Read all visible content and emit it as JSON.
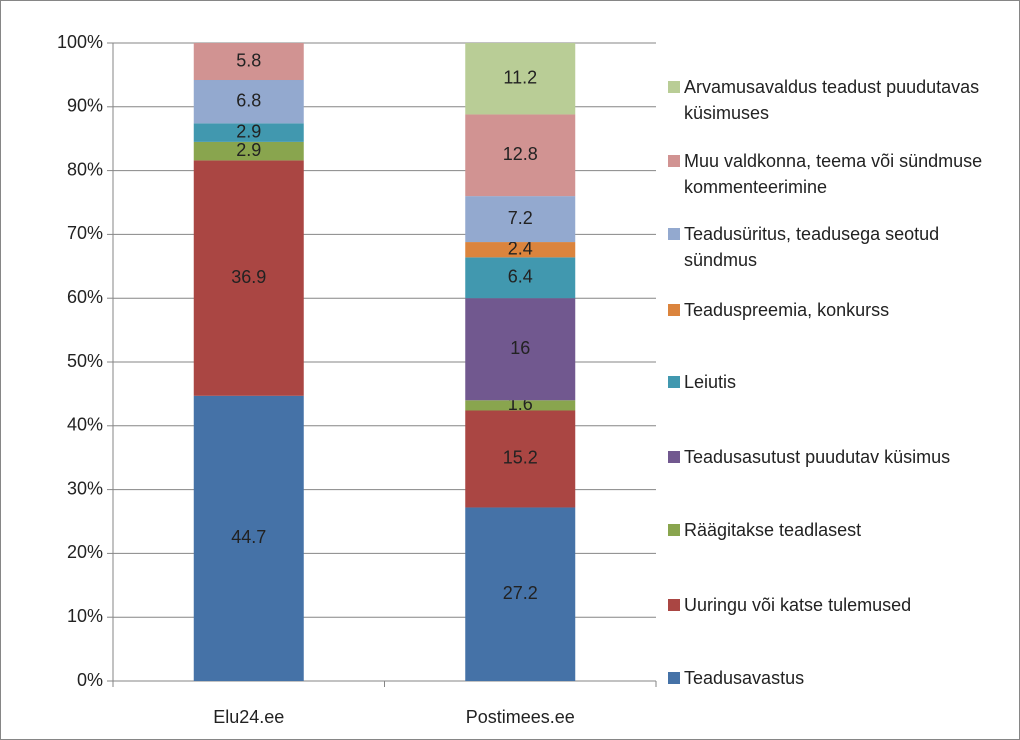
{
  "chart_data": {
    "type": "stacked_bar_100",
    "categories": [
      "Elu24.ee",
      "Postimees.ee"
    ],
    "series": [
      {
        "name": "Teadusavastus",
        "color": "#4572a7",
        "values": [
          44.7,
          27.2
        ]
      },
      {
        "name": "Uuringu või katse tulemused",
        "color": "#aa4643",
        "values": [
          36.9,
          15.2
        ]
      },
      {
        "name": "Räägitakse teadlasest",
        "color": "#89a54e",
        "values": [
          2.9,
          1.6
        ]
      },
      {
        "name": "Teadusasutust puudutav küsimus",
        "color": "#71588f",
        "values": [
          null,
          16
        ]
      },
      {
        "name": "Leiutis",
        "color": "#4198af",
        "values": [
          2.9,
          6.4
        ]
      },
      {
        "name": "Teaduspreemia, konkurss",
        "color": "#db843d",
        "values": [
          null,
          2.4
        ]
      },
      {
        "name": "Teadusüritus, teadusega seotud sündmus",
        "color": "#93a9cf",
        "values": [
          6.8,
          7.2
        ]
      },
      {
        "name": "Muu valdkonna, teema või sündmuse kommenteerimine",
        "color": "#d19392",
        "values": [
          5.8,
          12.8
        ]
      },
      {
        "name": "Arvamusavaldus teadust puudutavas küsimuses",
        "color": "#b9cd96",
        "values": [
          null,
          11.2
        ]
      }
    ],
    "ylim": [
      0,
      100
    ],
    "yticks": [
      {
        "value": 0,
        "label": "0%"
      },
      {
        "value": 10,
        "label": "10%"
      },
      {
        "value": 20,
        "label": "20%"
      },
      {
        "value": 30,
        "label": "30%"
      },
      {
        "value": 40,
        "label": "40%"
      },
      {
        "value": 50,
        "label": "50%"
      },
      {
        "value": 60,
        "label": "60%"
      },
      {
        "value": 70,
        "label": "70%"
      },
      {
        "value": 80,
        "label": "80%"
      },
      {
        "value": 90,
        "label": "90%"
      },
      {
        "value": 100,
        "label": "100%"
      }
    ],
    "grid": true,
    "legend": "right"
  }
}
